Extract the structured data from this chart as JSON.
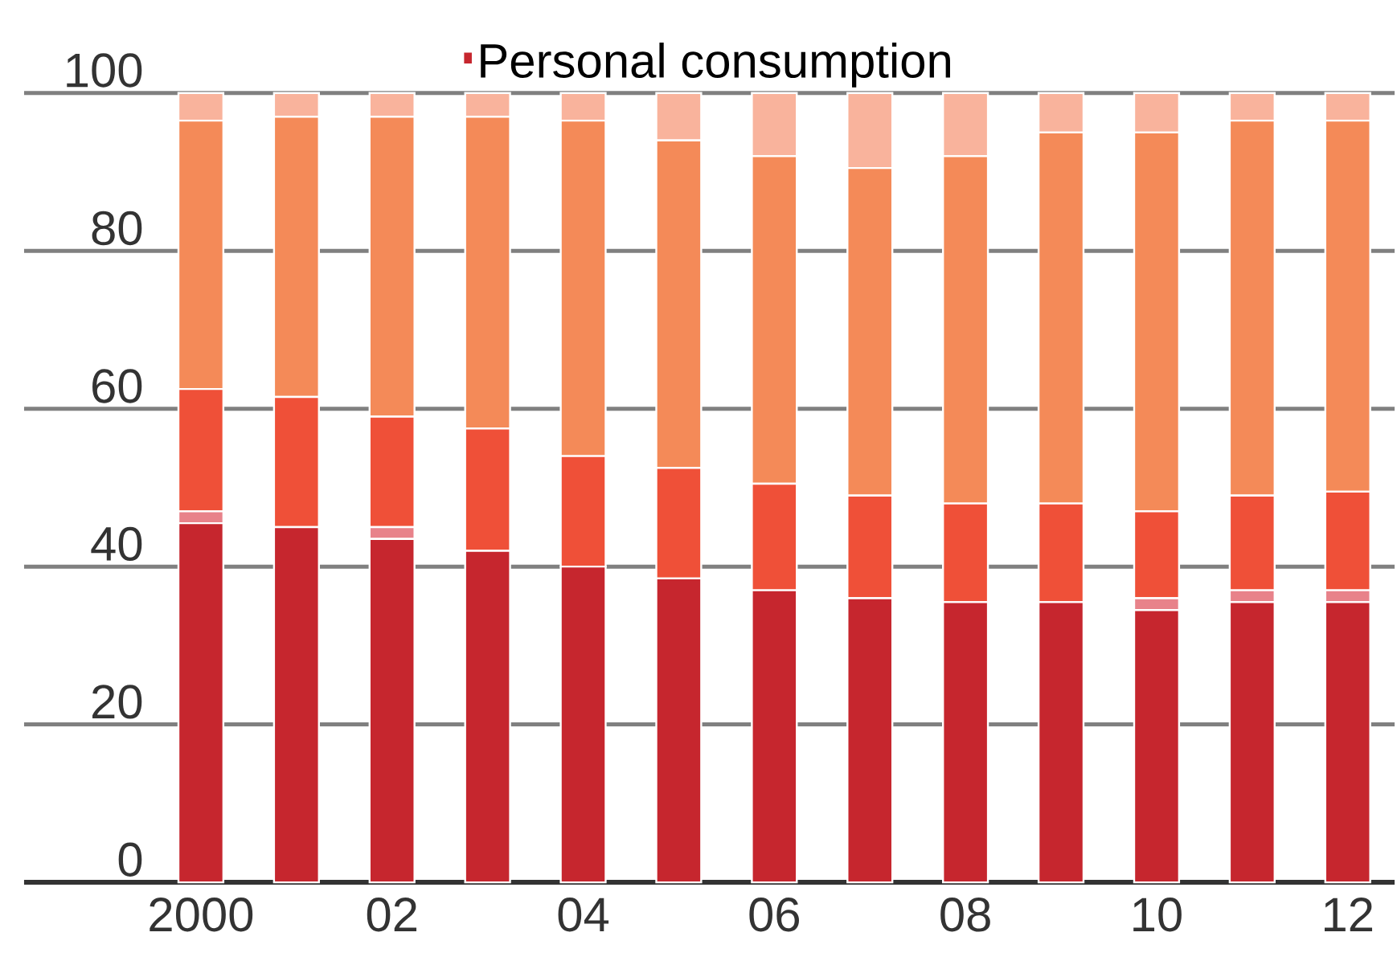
{
  "chart_data": {
    "type": "bar",
    "stacked": true,
    "categories": [
      "2000",
      null,
      "02",
      null,
      "04",
      null,
      "06",
      null,
      "08",
      null,
      "10",
      null,
      "12"
    ],
    "series": [
      {
        "name": "Personal consumption",
        "color": "#c6262e",
        "values": [
          45.5,
          45,
          43.5,
          42,
          40,
          38.5,
          37,
          36,
          35.5,
          35.5,
          34.5,
          35.5,
          35.5
        ]
      },
      {
        "color": "#e8828a",
        "values": [
          1.5,
          0,
          1.5,
          0,
          0,
          0,
          0,
          0,
          0,
          0,
          1.5,
          1.5,
          1.5
        ]
      },
      {
        "color": "#ef5038",
        "values": [
          15.5,
          16.5,
          14,
          15.5,
          14,
          14,
          13.5,
          13,
          12.5,
          12.5,
          11,
          12,
          12.5
        ]
      },
      {
        "color": "#f48a58",
        "values": [
          34,
          35.5,
          38,
          39.5,
          42.5,
          41.5,
          41.5,
          41.5,
          44,
          47,
          48,
          47.5,
          47
        ]
      },
      {
        "color": "#f9b39c",
        "values": [
          3.5,
          3,
          3,
          3,
          3.5,
          6,
          8,
          9.5,
          8,
          5,
          5,
          3.5,
          3.5
        ]
      }
    ],
    "ylim": [
      0,
      100
    ],
    "yticks": [
      0,
      20,
      40,
      60,
      80,
      100
    ],
    "grid": "y",
    "legend": "top"
  }
}
